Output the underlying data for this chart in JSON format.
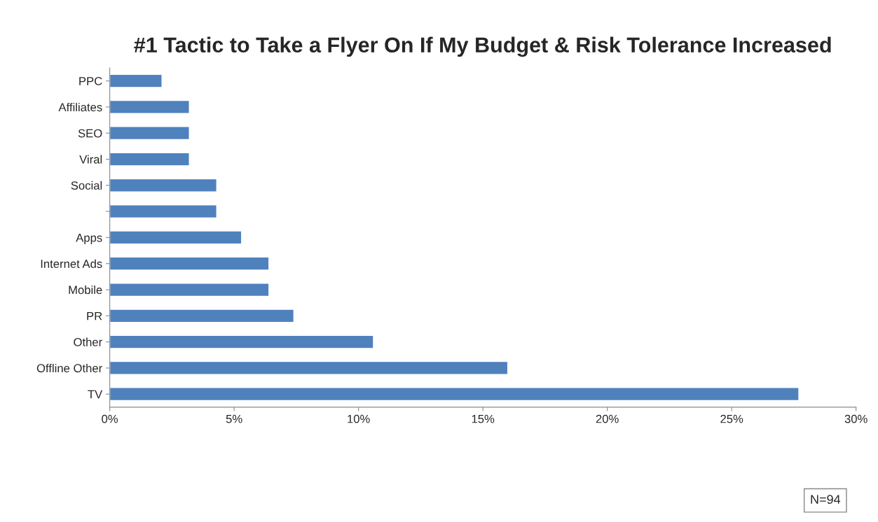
{
  "chart_data": {
    "type": "bar",
    "orientation": "horizontal",
    "title": "#1 Tactic to Take a Flyer On If My Budget & Risk Tolerance Increased",
    "categories": [
      "PPC",
      "Affiliates",
      "SEO",
      "Viral",
      "Social",
      null,
      "Apps",
      "Internet Ads",
      "Mobile",
      "PR",
      "Other",
      "Offline Other",
      "TV"
    ],
    "values": [
      2.1,
      3.2,
      3.2,
      3.2,
      4.3,
      4.3,
      5.3,
      6.4,
      6.4,
      7.4,
      10.6,
      16.0,
      27.7
    ],
    "color": "#4f81bd",
    "xlim": [
      0,
      30
    ],
    "xticks": [
      {
        "value": 0,
        "label": "0%"
      },
      {
        "value": 5,
        "label": "5%"
      },
      {
        "value": 10,
        "label": "10%"
      },
      {
        "value": 15,
        "label": "15%"
      },
      {
        "value": 20,
        "label": "20%"
      },
      {
        "value": 25,
        "label": "25%"
      },
      {
        "value": 30,
        "label": "30%"
      }
    ],
    "annotations": [
      "N=94"
    ],
    "grid": false,
    "legend": false
  }
}
